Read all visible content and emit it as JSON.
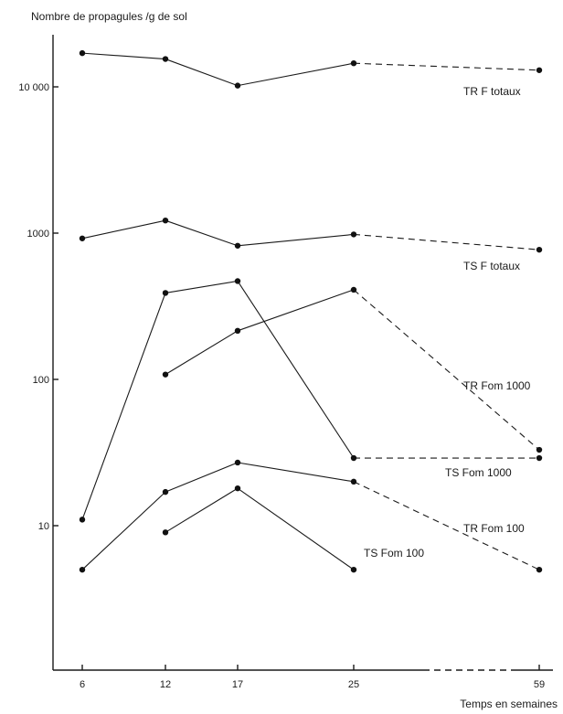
{
  "chart_data": {
    "type": "line",
    "ylabel": "Nombre de propagules /g de sol",
    "xlabel": "Temps en semaines",
    "x_ticks": [
      6,
      12,
      17,
      25,
      59
    ],
    "y_ticks": [
      {
        "value": 10,
        "label": "10"
      },
      {
        "value": 100,
        "label": "100"
      },
      {
        "value": 1000,
        "label": "1000"
      },
      {
        "value": 10000,
        "label": "10 000"
      }
    ],
    "y_scale": "log",
    "ylim": [
      0.5,
      40000
    ],
    "series": [
      {
        "name": "TR F totaux",
        "x": [
          6,
          12,
          17,
          25,
          59
        ],
        "y": [
          17000,
          15500,
          10200,
          14500,
          13000
        ],
        "dashed_last_segment": true
      },
      {
        "name": "TS F totaux",
        "x": [
          6,
          12,
          17,
          25,
          59
        ],
        "y": [
          920,
          1220,
          820,
          980,
          770
        ],
        "dashed_last_segment": true
      },
      {
        "name": "TR Fom 1000",
        "x": [
          12,
          17,
          25,
          59
        ],
        "y": [
          108,
          215,
          410,
          33
        ],
        "dashed_last_segment": true
      },
      {
        "name": "TS Fom 1000",
        "x": [
          6,
          12,
          17,
          25,
          59
        ],
        "y": [
          11,
          390,
          470,
          29,
          29
        ],
        "dashed_last_segment": true
      },
      {
        "name": "TR Fom 100",
        "x": [
          6,
          12,
          17,
          25,
          59
        ],
        "y": [
          5,
          17,
          27,
          20,
          5
        ],
        "dashed_last_segment": true
      },
      {
        "name": "TS Fom 100",
        "x": [
          12,
          17,
          25
        ],
        "y": [
          9,
          18,
          5
        ],
        "dashed_last_segment": false
      }
    ]
  }
}
